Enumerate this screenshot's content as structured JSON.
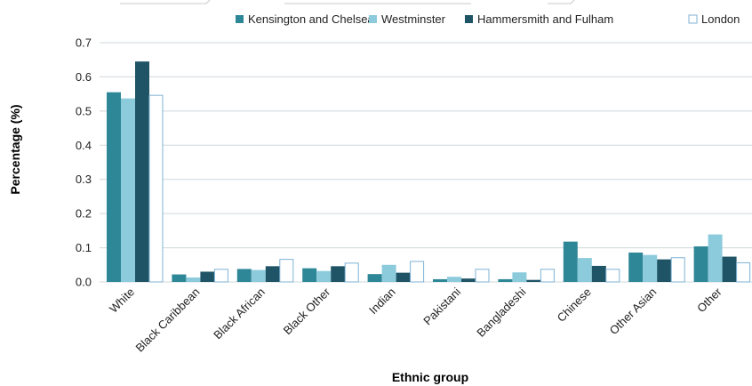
{
  "chart_data": {
    "type": "bar",
    "xlabel": "Ethnic group",
    "ylabel": "Percentage (%)",
    "ylim": [
      0,
      0.7
    ],
    "yticks": [
      "0.0",
      "0.1",
      "0.2",
      "0.3",
      "0.4",
      "0.5",
      "0.6",
      "0.7"
    ],
    "grid": true,
    "legend_position": "top-right",
    "categories": [
      "White",
      "Black Caribbean",
      "Black African",
      "Black Other",
      "Indian",
      "Pakistani",
      "Bangladeshi",
      "Chinese",
      "Other Asian",
      "Other"
    ],
    "series": [
      {
        "name": "Kensington and Chelsea",
        "color": "#2e8797",
        "hollow": false,
        "values": [
          0.555,
          0.022,
          0.038,
          0.04,
          0.023,
          0.008,
          0.008,
          0.118,
          0.086,
          0.104
        ]
      },
      {
        "name": "Westminster",
        "color": "#8ccbdc",
        "hollow": false,
        "values": [
          0.537,
          0.013,
          0.035,
          0.032,
          0.05,
          0.015,
          0.028,
          0.07,
          0.079,
          0.139
        ]
      },
      {
        "name": "Hammersmith and Fulham",
        "color": "#1f5466",
        "hollow": false,
        "values": [
          0.645,
          0.03,
          0.046,
          0.046,
          0.027,
          0.01,
          0.006,
          0.047,
          0.066,
          0.074
        ]
      },
      {
        "name": "London",
        "color": "#ffffff",
        "stroke": "#7fb3d5",
        "hollow": true,
        "values": [
          0.546,
          0.037,
          0.066,
          0.055,
          0.06,
          0.037,
          0.037,
          0.037,
          0.071,
          0.056
        ]
      }
    ]
  }
}
